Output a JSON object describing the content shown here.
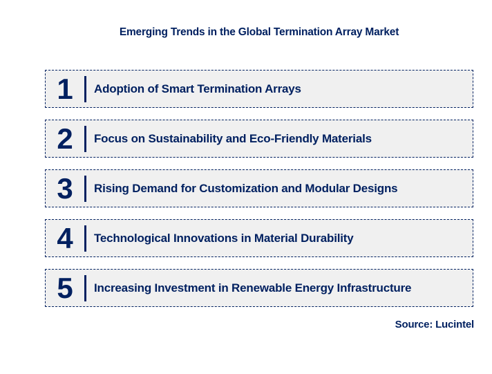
{
  "title": "Emerging Trends in the Global Termination Array Market",
  "source": "Source: Lucintel",
  "colors": {
    "navy": "#002060",
    "box_bg": "#f0f0f0",
    "page_bg": "#ffffff"
  },
  "trends": [
    {
      "number": "1",
      "label": "Adoption of Smart Termination Arrays"
    },
    {
      "number": "2",
      "label": "Focus on Sustainability and Eco-Friendly Materials"
    },
    {
      "number": "3",
      "label": "Rising Demand for Customization and Modular Designs"
    },
    {
      "number": "4",
      "label": "Technological Innovations in Material Durability"
    },
    {
      "number": "5",
      "label": "Increasing Investment in Renewable Energy Infrastructure"
    }
  ]
}
